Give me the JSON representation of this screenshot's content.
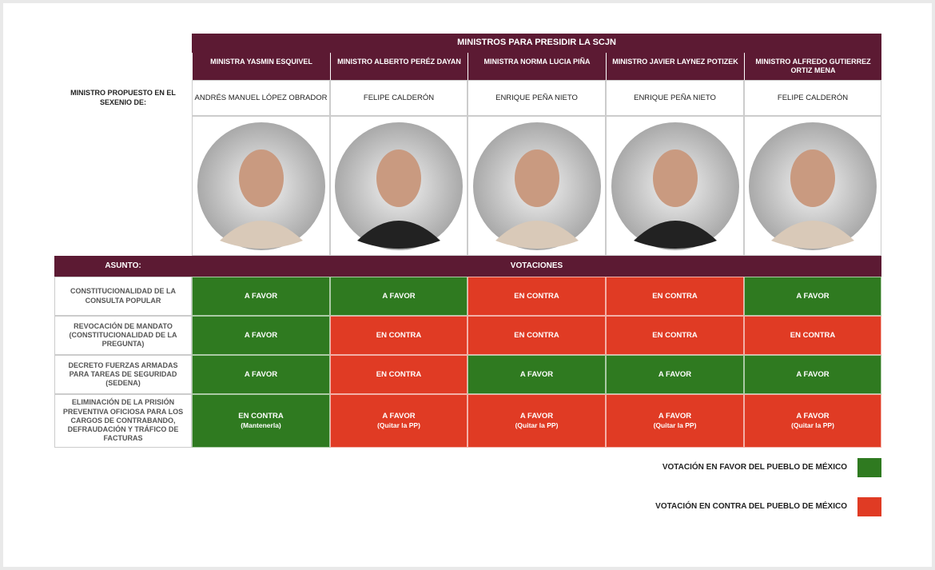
{
  "header": {
    "title": "MINISTROS PARA PRESIDIR LA SCJN",
    "proposer_label": "MINISTRO PROPUESTO EN EL SEXENIO DE:",
    "subject_label": "ASUNTO:",
    "votes_label": "VOTACIONES",
    "color": "#5c1a33"
  },
  "ministers": [
    {
      "name": "MINISTRA YASMIN ESQUIVEL",
      "proposed_by": "ANDRÉS MANUEL LÓPEZ OBRADOR"
    },
    {
      "name": "MINISTRO ALBERTO PERÉZ DAYAN",
      "proposed_by": "FELIPE CALDERÓN"
    },
    {
      "name": "MINISTRA NORMA LUCIA PIÑA",
      "proposed_by": "ENRIQUE PEÑA NIETO"
    },
    {
      "name": "MINISTRO JAVIER LAYNEZ POTIZEK",
      "proposed_by": "ENRIQUE PEÑA NIETO"
    },
    {
      "name": "MINISTRO ALFREDO GUTIERREZ ORTIZ MENA",
      "proposed_by": "FELIPE CALDERÓN"
    }
  ],
  "rows": [
    {
      "subject": "CONSTITUCIONALIDAD DE LA CONSULTA POPULAR",
      "votes": [
        {
          "text": "A FAVOR",
          "color": "#2f7a20"
        },
        {
          "text": "A FAVOR",
          "color": "#2f7a20"
        },
        {
          "text": "EN CONTRA",
          "color": "#e03b24"
        },
        {
          "text": "EN CONTRA",
          "color": "#e03b24"
        },
        {
          "text": "A FAVOR",
          "color": "#2f7a20"
        }
      ]
    },
    {
      "subject": "REVOCACIÓN DE MANDATO (CONSTITUCIONALIDAD DE LA PREGUNTA)",
      "votes": [
        {
          "text": "A FAVOR",
          "color": "#2f7a20"
        },
        {
          "text": "EN CONTRA",
          "color": "#e03b24"
        },
        {
          "text": "EN CONTRA",
          "color": "#e03b24"
        },
        {
          "text": "EN CONTRA",
          "color": "#e03b24"
        },
        {
          "text": "EN CONTRA",
          "color": "#e03b24"
        }
      ]
    },
    {
      "subject": "DECRETO FUERZAS ARMADAS PARA TAREAS DE SEGURIDAD (SEDENA)",
      "votes": [
        {
          "text": "A FAVOR",
          "color": "#2f7a20"
        },
        {
          "text": "EN CONTRA",
          "color": "#e03b24"
        },
        {
          "text": "A FAVOR",
          "color": "#2f7a20"
        },
        {
          "text": "A FAVOR",
          "color": "#2f7a20"
        },
        {
          "text": "A FAVOR",
          "color": "#2f7a20"
        }
      ]
    },
    {
      "subject": "ELIMINACIÓN DE LA PRISIÓN PREVENTIVA OFICIOSA PARA LOS CARGOS DE CONTRABANDO, DEFRAUDACIÓN Y TRÁFICO DE FACTURAS",
      "votes": [
        {
          "text": "EN CONTRA",
          "note": "(Mantenerla)",
          "color": "#2f7a20"
        },
        {
          "text": "A FAVOR",
          "note": "(Quitar la PP)",
          "color": "#e03b24"
        },
        {
          "text": "A FAVOR",
          "note": "(Quitar la PP)",
          "color": "#e03b24"
        },
        {
          "text": "A FAVOR",
          "note": "(Quitar la PP)",
          "color": "#e03b24"
        },
        {
          "text": "A FAVOR",
          "note": "(Quitar la PP)",
          "color": "#e03b24"
        }
      ]
    }
  ],
  "legend": [
    {
      "label": "VOTACIÓN EN FAVOR DEL PUEBLO DE MÉXICO",
      "color": "#2f7a20"
    },
    {
      "label": "VOTACIÓN EN CONTRA DEL PUEBLO DE MÉXICO",
      "color": "#e03b24"
    }
  ]
}
